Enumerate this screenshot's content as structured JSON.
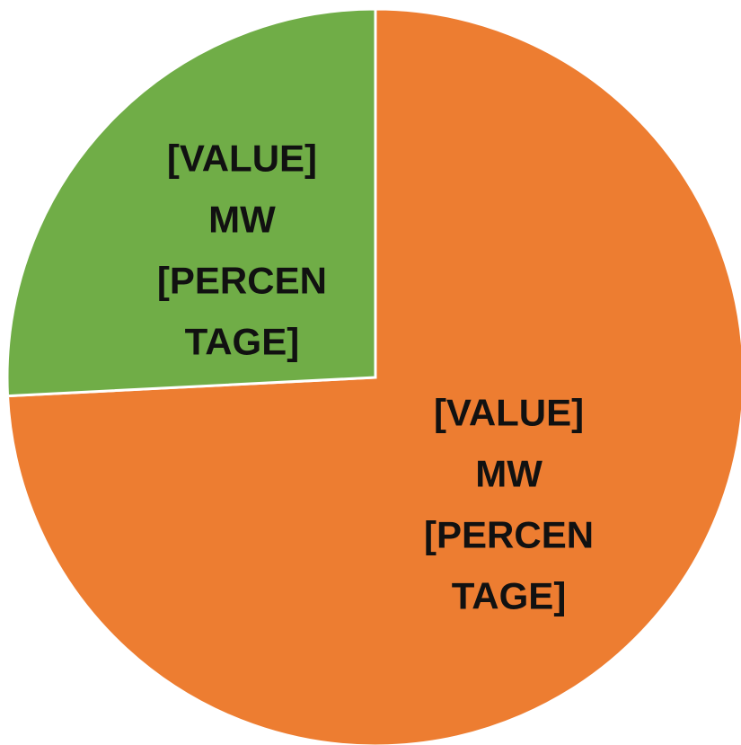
{
  "chart_data": {
    "type": "pie",
    "series": [
      {
        "values": [
          74.2,
          25.8
        ],
        "colors": [
          "#ed7d31",
          "#70ad47"
        ],
        "value_labels": [
          "[VALUE] MW [PERCENTAGE]",
          "[VALUE] MW [PERCENTAGE]"
        ]
      }
    ]
  }
}
